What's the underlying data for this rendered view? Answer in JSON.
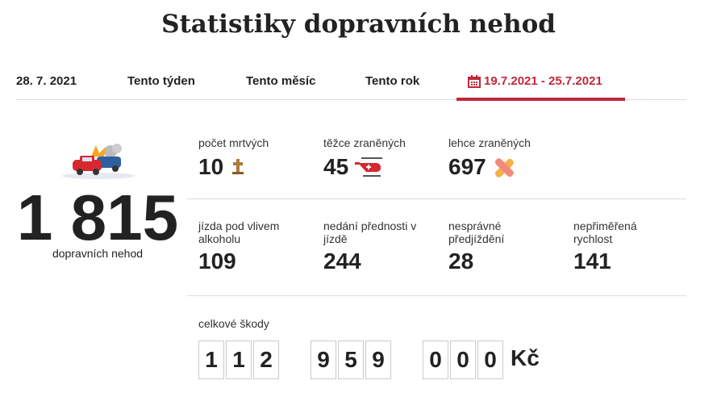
{
  "header": {
    "title": "Statistiky dopravních nehod"
  },
  "tabs": [
    "28. 7. 2021",
    "Tento týden",
    "Tento měsíc",
    "Tento rok",
    "19.7.2021 - 25.7.2021"
  ],
  "total": {
    "value": "1 815",
    "label": "dopravních nehod"
  },
  "stats": [
    [
      {
        "label": "počet mrtvých",
        "value": 10
      },
      {
        "label": "těžce zraněných",
        "value": 45
      },
      {
        "label": "lehce zraněných",
        "value": 697
      }
    ],
    [
      {
        "label": "jízda pod vlivem alkoholu",
        "value": 109
      },
      {
        "label": "nedání přednosti v jízdě",
        "value": 244
      },
      {
        "label": "nesprávné předjíždění",
        "value": 28
      },
      {
        "label": "nepřiměřená rychlost",
        "value": 141
      }
    ]
  ],
  "damage": {
    "label": "celkové škody",
    "groups": [
      [
        "1",
        "1",
        "2"
      ],
      [
        "9",
        "5",
        "9"
      ],
      [
        "0",
        "0",
        "0"
      ]
    ],
    "currency": "Kč"
  }
}
